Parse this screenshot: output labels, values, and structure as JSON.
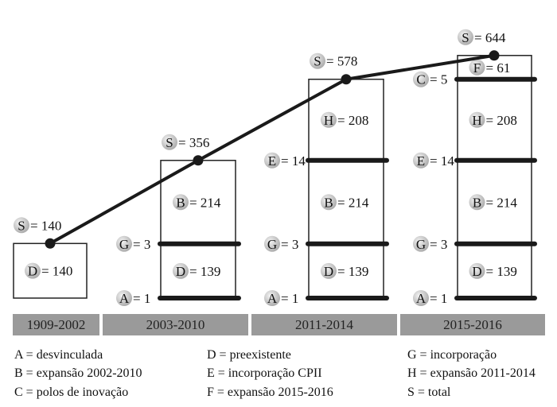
{
  "chart_data": {
    "type": "bar",
    "periods": [
      "1909-2002",
      "2003-2010",
      "2011-2014",
      "2015-2016"
    ],
    "totals": [
      {
        "letter": "S",
        "value": 140
      },
      {
        "letter": "S",
        "value": 356
      },
      {
        "letter": "S",
        "value": 578
      },
      {
        "letter": "S",
        "value": 644
      }
    ],
    "columns": [
      {
        "period": "1909-2002",
        "segments": [
          {
            "letter": "D",
            "value": 140
          }
        ],
        "dividers": []
      },
      {
        "period": "2003-2010",
        "segments": [
          {
            "letter": "D",
            "value": 139
          },
          {
            "letter": "B",
            "value": 214
          }
        ],
        "dividers": [
          {
            "letter": "A",
            "value": 1
          },
          {
            "letter": "G",
            "value": 3
          }
        ]
      },
      {
        "period": "2011-2014",
        "segments": [
          {
            "letter": "D",
            "value": 139
          },
          {
            "letter": "B",
            "value": 214
          },
          {
            "letter": "H",
            "value": 208
          }
        ],
        "dividers": [
          {
            "letter": "A",
            "value": 1
          },
          {
            "letter": "G",
            "value": 3
          },
          {
            "letter": "E",
            "value": 14
          }
        ]
      },
      {
        "period": "2015-2016",
        "segments": [
          {
            "letter": "D",
            "value": 139
          },
          {
            "letter": "B",
            "value": 214
          },
          {
            "letter": "H",
            "value": 208
          },
          {
            "letter": "F",
            "value": 61
          }
        ],
        "dividers": [
          {
            "letter": "A",
            "value": 1
          },
          {
            "letter": "G",
            "value": 3
          },
          {
            "letter": "E",
            "value": 14
          },
          {
            "letter": "C",
            "value": 5
          }
        ]
      }
    ],
    "legend": [
      {
        "letter": "A",
        "text": "A = desvinculada"
      },
      {
        "letter": "D",
        "text": "D = preexistente"
      },
      {
        "letter": "G",
        "text": "G = incorporação"
      },
      {
        "letter": "B",
        "text": "B = expansão 2002-2010"
      },
      {
        "letter": "E",
        "text": "E = incorporação CPII"
      },
      {
        "letter": "H",
        "text": "H = expansão 2011-2014"
      },
      {
        "letter": "C",
        "text": "C = polos de inovação"
      },
      {
        "letter": "F",
        "text": "F = expansão 2015-2016"
      },
      {
        "letter": "S",
        "text": "S = total"
      }
    ],
    "colors": {
      "line": "#1a1a1a",
      "box_stroke": "#222222",
      "band": "#9a9a9a",
      "band_text": "#1e1e1e",
      "badge_light": "#f4f4f4",
      "badge_dark": "#a8a8a8"
    }
  }
}
